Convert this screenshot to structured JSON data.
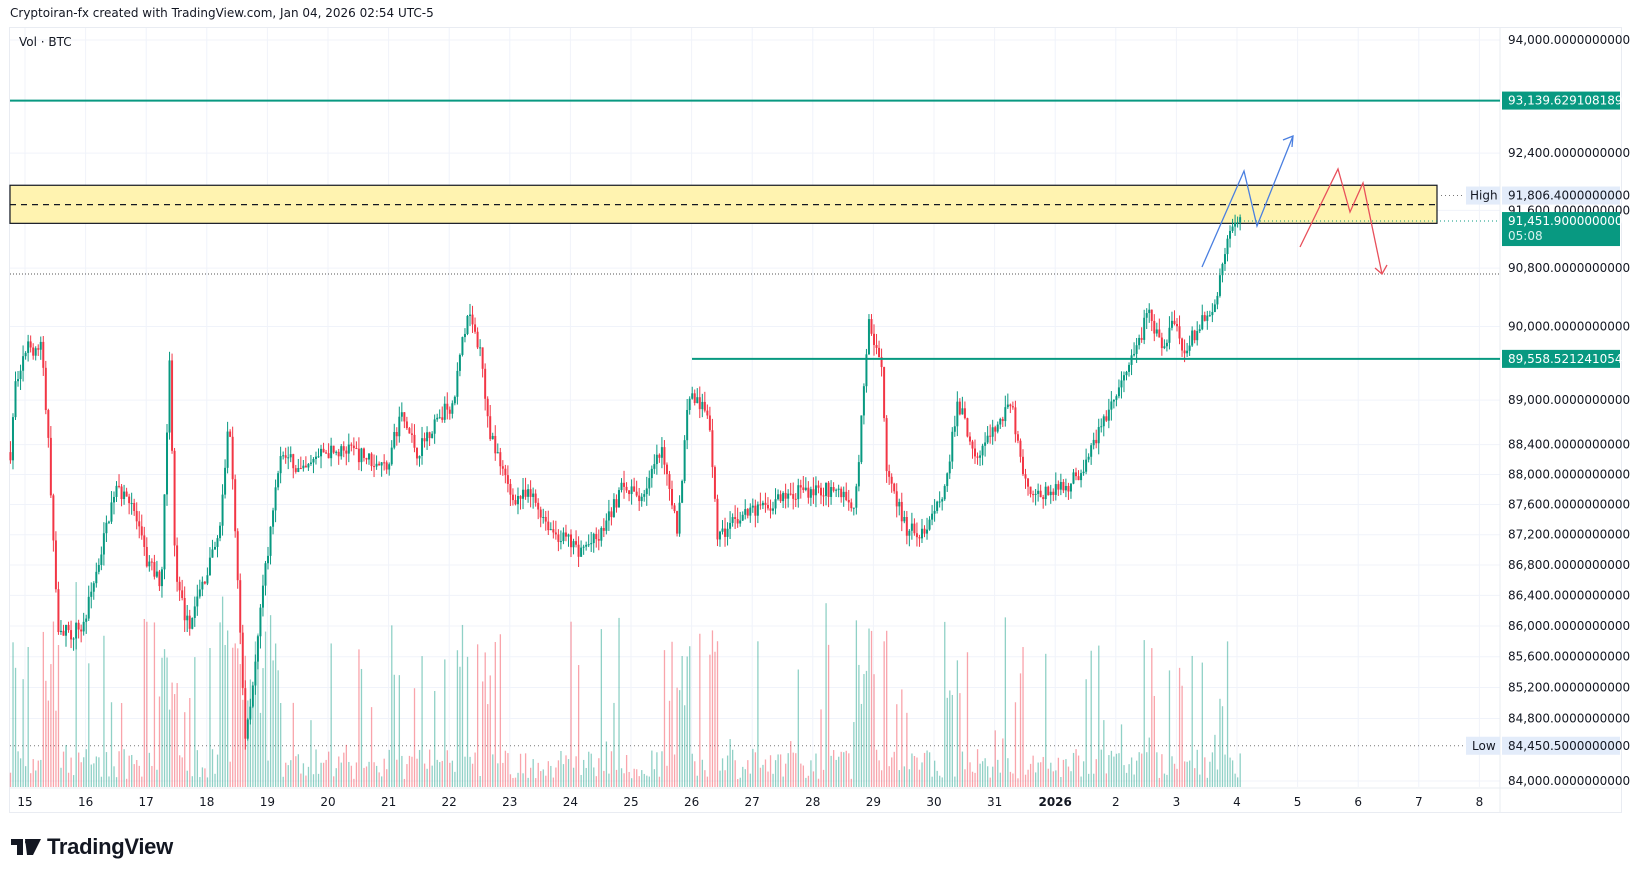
{
  "header": {
    "caption": "Cryptoiran-fx created with TradingView.com, Jan 04, 2026 02:54 UTC-5"
  },
  "legend": {
    "volume_label": "Vol · BTC"
  },
  "branding": {
    "logo_text": "TradingView"
  },
  "colors": {
    "up": "#089981",
    "down": "#f23645",
    "zone": "#fff3b0",
    "blue_path": "#4a7fe0",
    "red_path": "#e8505b"
  },
  "chart_data": {
    "type": "candlestick",
    "title": "BTC",
    "y_scale": "log",
    "ylim": [
      84000,
      94000
    ],
    "y_ticks": [
      "94,000.0000000000",
      "92,400.0000000000",
      "91,600.0000000000",
      "90,800.0000000000",
      "90,000.0000000000",
      "89,000.0000000000",
      "88,400.0000000000",
      "88,000.0000000000",
      "87,600.0000000000",
      "87,200.0000000000",
      "86,800.0000000000",
      "86,400.0000000000",
      "86,000.0000000000",
      "85,600.0000000000",
      "85,200.0000000000",
      "84,800.0000000000",
      "84,000.0000000000"
    ],
    "y_tick_values": [
      94000,
      92400,
      91600,
      90800,
      90000,
      89000,
      88400,
      88000,
      87600,
      87200,
      86800,
      86400,
      86000,
      85600,
      85200,
      84800,
      84000
    ],
    "x_ticks": [
      "15",
      "16",
      "17",
      "18",
      "19",
      "20",
      "21",
      "22",
      "23",
      "24",
      "25",
      "26",
      "27",
      "28",
      "29",
      "30",
      "31",
      "2026",
      "2",
      "3",
      "4",
      "5",
      "6",
      "7",
      "8"
    ],
    "price_path": [
      [
        -0.24,
        88300
      ],
      [
        -0.15,
        89300
      ],
      [
        0.02,
        89700
      ],
      [
        0.28,
        89700
      ],
      [
        0.41,
        88100
      ],
      [
        0.53,
        86050
      ],
      [
        0.7,
        85900
      ],
      [
        0.96,
        86000
      ],
      [
        1.22,
        86850
      ],
      [
        1.48,
        87800
      ],
      [
        1.74,
        87700
      ],
      [
        2.0,
        86850
      ],
      [
        2.25,
        86600
      ],
      [
        2.39,
        89600
      ],
      [
        2.48,
        86600
      ],
      [
        2.69,
        86000
      ],
      [
        2.86,
        86400
      ],
      [
        3.2,
        87150
      ],
      [
        3.37,
        88800
      ],
      [
        3.51,
        86600
      ],
      [
        3.63,
        84550
      ],
      [
        3.8,
        85500
      ],
      [
        3.98,
        86850
      ],
      [
        4.23,
        88300
      ],
      [
        4.58,
        88000
      ],
      [
        4.92,
        88300
      ],
      [
        5.44,
        88300
      ],
      [
        5.96,
        88100
      ],
      [
        6.21,
        88800
      ],
      [
        6.47,
        88300
      ],
      [
        6.82,
        88800
      ],
      [
        7.07,
        88950
      ],
      [
        7.3,
        90200
      ],
      [
        7.5,
        89700
      ],
      [
        7.68,
        88500
      ],
      [
        8.02,
        87700
      ],
      [
        8.37,
        87700
      ],
      [
        8.7,
        87250
      ],
      [
        9.14,
        87000
      ],
      [
        9.48,
        87150
      ],
      [
        9.83,
        87800
      ],
      [
        10.17,
        87700
      ],
      [
        10.5,
        88300
      ],
      [
        10.77,
        87250
      ],
      [
        10.95,
        89100
      ],
      [
        11.29,
        88800
      ],
      [
        11.43,
        87150
      ],
      [
        11.81,
        87450
      ],
      [
        12.32,
        87600
      ],
      [
        12.84,
        87800
      ],
      [
        13.36,
        87800
      ],
      [
        13.7,
        87600
      ],
      [
        13.92,
        90050
      ],
      [
        14.13,
        89500
      ],
      [
        14.22,
        88000
      ],
      [
        14.56,
        87250
      ],
      [
        14.9,
        87250
      ],
      [
        15.16,
        87800
      ],
      [
        15.4,
        88950
      ],
      [
        15.68,
        88300
      ],
      [
        15.94,
        88500
      ],
      [
        16.28,
        88950
      ],
      [
        16.45,
        88000
      ],
      [
        16.7,
        87700
      ],
      [
        17.13,
        87800
      ],
      [
        17.49,
        88100
      ],
      [
        17.83,
        88800
      ],
      [
        18.1,
        89200
      ],
      [
        18.35,
        89700
      ],
      [
        18.52,
        90200
      ],
      [
        18.78,
        89700
      ],
      [
        18.95,
        90200
      ],
      [
        19.12,
        89600
      ],
      [
        19.38,
        90050
      ],
      [
        19.64,
        90350
      ],
      [
        19.81,
        91000
      ],
      [
        19.93,
        91400
      ],
      [
        20.07,
        91451.9
      ]
    ],
    "levels": [
      {
        "name": "resistance",
        "price": 93139.6291081893,
        "label": "93,139.6291081893"
      },
      {
        "name": "support",
        "price": 89558.5212410546,
        "label": "89,558.5212410546"
      }
    ],
    "zone": {
      "top": 91950,
      "bottom": 91420,
      "mid": 91680
    },
    "dotted_level": 90720,
    "high": {
      "tag": "High",
      "price": 91806.4,
      "label": "91,806.4000000000"
    },
    "low": {
      "tag": "Low",
      "price": 84450.5,
      "label": "84,450.5000000000"
    },
    "last": {
      "price": 91451.9,
      "label": "91,451.9000000000",
      "countdown": "05:08"
    }
  }
}
